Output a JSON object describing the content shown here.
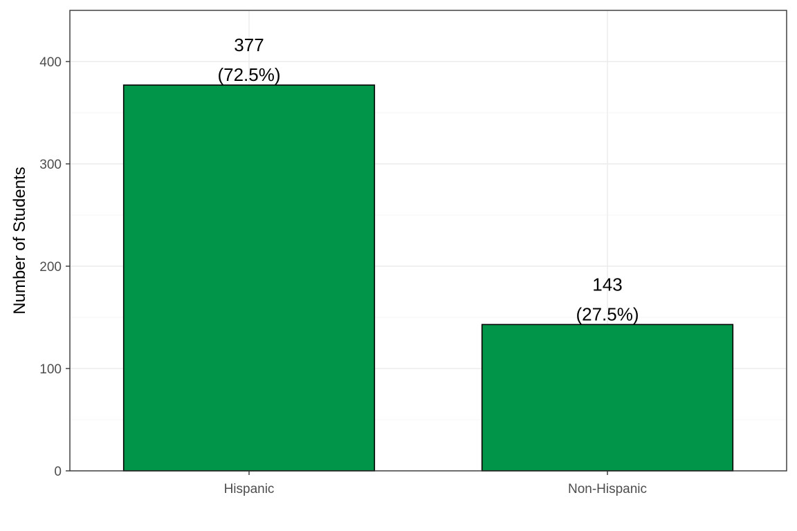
{
  "chart_data": {
    "type": "bar",
    "categories": [
      "Hispanic",
      "Non-Hispanic"
    ],
    "values": [
      377,
      143
    ],
    "labels": [
      "377",
      "143"
    ],
    "percent_labels": [
      "(72.5%)",
      "(27.5%)"
    ],
    "title": "",
    "xlabel": "",
    "ylabel": "Number of Students",
    "ylim": [
      0,
      450
    ],
    "yticks": [
      0,
      100,
      200,
      300,
      400
    ],
    "grid": true,
    "legend": "none",
    "bar_color": "#009549",
    "bar_outline": "#000000"
  }
}
